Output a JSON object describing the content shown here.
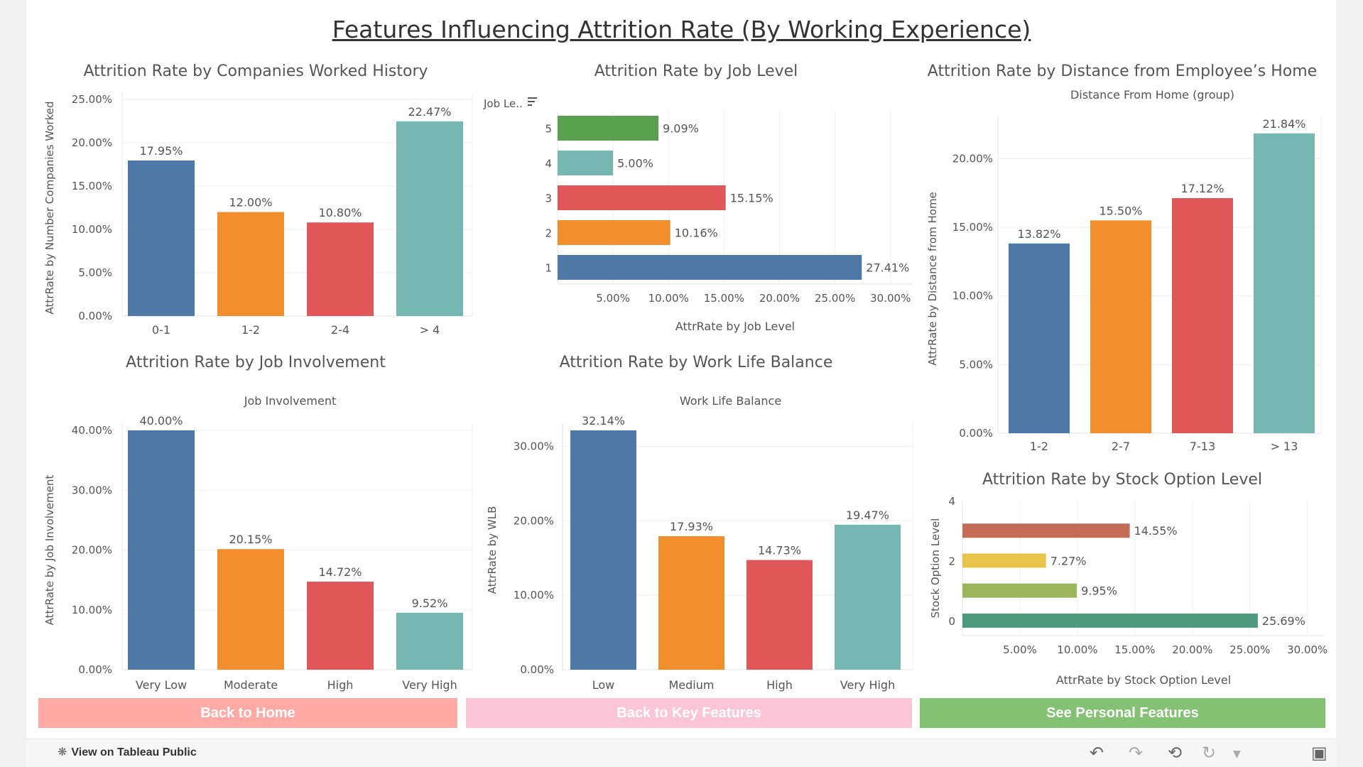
{
  "dashboard": {
    "title": "Features Influencing Attrition Rate (By Working Experience)"
  },
  "chart_data": [
    {
      "id": "companies",
      "type": "bar",
      "title": "Attrition Rate by Companies Worked History",
      "subtitle": "",
      "xlabel": "",
      "ylabel": "AttrRate by Number Companies Worked",
      "categories": [
        "0-1",
        "1-2",
        "2-4",
        "> 4"
      ],
      "values": [
        17.95,
        12.0,
        10.8,
        22.47
      ],
      "labels": [
        "17.95%",
        "12.00%",
        "10.80%",
        "22.47%"
      ],
      "colors": [
        "#4e79a7",
        "#f28e2b",
        "#e15759",
        "#76b7b2"
      ],
      "ylim": [
        0,
        25
      ],
      "ticks": [
        0,
        5,
        10,
        15,
        20,
        25
      ],
      "tick_labels": [
        "0.00%",
        "5.00%",
        "10.00%",
        "15.00%",
        "20.00%",
        "25.00%"
      ],
      "grid": true
    },
    {
      "id": "joblevel",
      "type": "bar",
      "orientation": "horizontal",
      "title": "Attrition Rate by Job Level",
      "row_header": "Job Le..",
      "xlabel": "AttrRate by Job Level",
      "categories": [
        "5",
        "4",
        "3",
        "2",
        "1"
      ],
      "values": [
        9.09,
        5.0,
        15.15,
        10.16,
        27.41
      ],
      "labels": [
        "9.09%",
        "5.00%",
        "15.15%",
        "10.16%",
        "27.41%"
      ],
      "colors": [
        "#59a14f",
        "#76b7b2",
        "#e15759",
        "#f28e2b",
        "#4e79a7"
      ],
      "xlim": [
        0,
        32
      ],
      "ticks": [
        5,
        10,
        15,
        20,
        25,
        30
      ],
      "tick_labels": [
        "5.00%",
        "10.00%",
        "15.00%",
        "20.00%",
        "25.00%",
        "30.00%"
      ],
      "grid": true
    },
    {
      "id": "distance",
      "type": "bar",
      "title": "Attrition Rate by Distance from Employee’s Home",
      "subtitle": "Distance From Home (group)",
      "xlabel": "",
      "ylabel": "AttrRate by Distance from Home",
      "categories": [
        "1-2",
        "2-7",
        "7-13",
        "> 13"
      ],
      "values": [
        13.82,
        15.5,
        17.12,
        21.84
      ],
      "labels": [
        "13.82%",
        "15.50%",
        "17.12%",
        "21.84%"
      ],
      "colors": [
        "#4e79a7",
        "#f28e2b",
        "#e15759",
        "#76b7b2"
      ],
      "ylim": [
        0,
        22.5
      ],
      "ticks": [
        0,
        5,
        10,
        15,
        20
      ],
      "tick_labels": [
        "0.00%",
        "5.00%",
        "10.00%",
        "15.00%",
        "20.00%"
      ],
      "grid": true
    },
    {
      "id": "involvement",
      "type": "bar",
      "title": "Attrition Rate by Job Involvement",
      "subtitle": "Job Involvement",
      "xlabel": "",
      "ylabel": "AttrRate by Job Involvement",
      "categories": [
        "Very Low",
        "Moderate",
        "High",
        "Very High"
      ],
      "values": [
        40.0,
        20.15,
        14.72,
        9.52
      ],
      "labels": [
        "40.00%",
        "20.15%",
        "14.72%",
        "9.52%"
      ],
      "colors": [
        "#4e79a7",
        "#f28e2b",
        "#e15759",
        "#76b7b2"
      ],
      "ylim": [
        0,
        40
      ],
      "ticks": [
        0,
        10,
        20,
        30,
        40
      ],
      "tick_labels": [
        "0.00%",
        "10.00%",
        "20.00%",
        "30.00%",
        "40.00%"
      ],
      "grid": true
    },
    {
      "id": "wlb",
      "type": "bar",
      "title": "Attrition Rate by Work Life Balance",
      "subtitle": "Work Life Balance",
      "xlabel": "",
      "ylabel": "AttrRate by WLB",
      "categories": [
        "Low",
        "Medium",
        "High",
        "Very High"
      ],
      "values": [
        32.14,
        17.93,
        14.73,
        19.47
      ],
      "labels": [
        "32.14%",
        "17.93%",
        "14.73%",
        "19.47%"
      ],
      "colors": [
        "#4e79a7",
        "#f28e2b",
        "#e15759",
        "#76b7b2"
      ],
      "ylim": [
        0,
        32.14
      ],
      "ticks": [
        0,
        10,
        20,
        30
      ],
      "tick_labels": [
        "0.00%",
        "10.00%",
        "20.00%",
        "30.00%"
      ],
      "grid": true
    },
    {
      "id": "stock",
      "type": "bar",
      "orientation": "horizontal",
      "title": "Attrition Rate by Stock Option Level",
      "xlabel": "AttrRate by Stock Option Level",
      "ylabel": "Stock Option Level",
      "categories": [
        "3",
        "2",
        "1",
        "0"
      ],
      "values": [
        14.55,
        7.27,
        9.95,
        25.69
      ],
      "labels": [
        "14.55%",
        "7.27%",
        "9.95%",
        "25.69%"
      ],
      "colors": [
        "#c46c56",
        "#e8c54a",
        "#9ab55a",
        "#4f9a7f"
      ],
      "ylim": [
        -0.5,
        4
      ],
      "y_ticks": [
        0,
        2,
        4
      ],
      "xlim": [
        0,
        31.5
      ],
      "ticks": [
        5,
        10,
        15,
        20,
        25,
        30
      ],
      "tick_labels": [
        "5.00%",
        "10.00%",
        "15.00%",
        "20.00%",
        "25.00%",
        "30.00%"
      ],
      "grid": true
    }
  ],
  "buttons": {
    "home": "Back to Home",
    "key": "Back to Key Features",
    "personal": "See Personal Features",
    "colors": {
      "home": "#ffaaa5",
      "key": "#fcc5d8",
      "personal": "#82c272"
    }
  },
  "footer": {
    "tableau_link": "View on Tableau Public",
    "icons": [
      "undo-icon",
      "redo-icon",
      "revert-icon",
      "refresh-icon",
      "dropdown-icon",
      "fullscreen-icon"
    ]
  }
}
